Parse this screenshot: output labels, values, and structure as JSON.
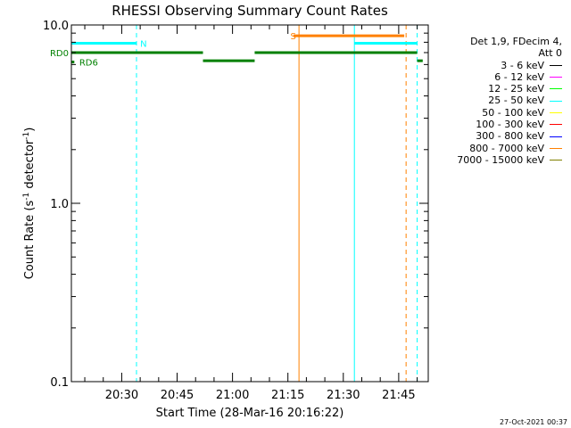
{
  "chart_data": {
    "type": "line",
    "title": "RHESSI Observing Summary Count Rates",
    "xlabel": "Start Time (28-Mar-16 20:16:22)",
    "ylabel_main": "Count Rate (s",
    "ylabel_sup1": "-1",
    "ylabel_mid": " detector",
    "ylabel_sup2": "-1",
    "ylabel_end": ")",
    "y_scale": "log",
    "ylim": [
      0.1,
      10.0
    ],
    "xlim": [
      "20:16:22",
      "21:53:00"
    ],
    "x_ticks": [
      {
        "label": "20:30",
        "value": "20:30"
      },
      {
        "label": "20:45",
        "value": "20:45"
      },
      {
        "label": "21:00",
        "value": "21:00"
      },
      {
        "label": "21:15",
        "value": "21:15"
      },
      {
        "label": "21:30",
        "value": "21:30"
      },
      {
        "label": "21:45",
        "value": "21:45"
      }
    ],
    "y_ticks": [
      {
        "label": "0.1",
        "value": 0.1
      },
      {
        "label": "1.0",
        "value": 1.0
      },
      {
        "label": "10.0",
        "value": 10.0
      }
    ],
    "segments": [
      {
        "color": "#00ffff",
        "x0": "20:16:22",
        "x1": "20:34:00",
        "y": 7.9
      },
      {
        "color": "#00ffff",
        "x0": "21:33:00",
        "x1": "21:50:00",
        "y": 7.9
      },
      {
        "color": "#008000",
        "x0": "20:16:22",
        "x1": "20:52:00",
        "y": 7.0
      },
      {
        "color": "#008000",
        "x0": "20:52:00",
        "x1": "21:06:00",
        "y": 6.3
      },
      {
        "color": "#008000",
        "x0": "21:06:00",
        "x1": "21:50:00",
        "y": 7.0
      },
      {
        "color": "#008000",
        "x0": "20:16:22",
        "x1": "20:17:10",
        "y": 6.2
      },
      {
        "color": "#008000",
        "x0": "21:50:00",
        "x1": "21:51:30",
        "y": 6.3
      },
      {
        "color": "#ff8000",
        "x0": "21:16:30",
        "x1": "21:46:30",
        "y": 8.7
      }
    ],
    "vlines": [
      {
        "time": "20:16:22",
        "color": "#00ffff",
        "dashed": false
      },
      {
        "time": "20:34:00",
        "color": "#00ffff",
        "dashed": true
      },
      {
        "time": "21:33:00",
        "color": "#00ffff",
        "dashed": false
      },
      {
        "time": "21:50:00",
        "color": "#00ffff",
        "dashed": true
      },
      {
        "time": "21:18:00",
        "color": "#ff8000",
        "dashed": false
      },
      {
        "time": "21:47:00",
        "color": "#ff8000",
        "dashed": true
      }
    ],
    "annotations": [
      {
        "text": "N",
        "time": "20:35:00",
        "y": 7.9,
        "color": "#00ffff"
      },
      {
        "text": "S",
        "time": "21:15:40",
        "y": 8.7,
        "color": "#ff8000"
      },
      {
        "text": "RD0",
        "time": "20:16:22",
        "y": 7.0,
        "color": "#008000",
        "side": "left"
      },
      {
        "text": "RD6",
        "time": "20:18:30",
        "y": 6.2,
        "color": "#008000",
        "side": "right"
      }
    ]
  },
  "legend": {
    "header_line1": "Det 1,9, FDecim 4,",
    "header_line2": "Att 0",
    "entries": [
      {
        "label": "3 - 6 keV",
        "color": "#000000"
      },
      {
        "label": "6 - 12 keV",
        "color": "#ff00ff"
      },
      {
        "label": "12 - 25 keV",
        "color": "#00ff00"
      },
      {
        "label": "25 - 50 keV",
        "color": "#00ffff"
      },
      {
        "label": "50 - 100 keV",
        "color": "#ffff00"
      },
      {
        "label": "100 - 300 keV",
        "color": "#ff0000"
      },
      {
        "label": "300 - 800 keV",
        "color": "#0000ff"
      },
      {
        "label": "800 - 7000 keV",
        "color": "#ff8000"
      },
      {
        "label": "7000 - 15000 keV",
        "color": "#808000"
      }
    ]
  },
  "footer": {
    "timestamp": "27-Oct-2021 00:37"
  }
}
